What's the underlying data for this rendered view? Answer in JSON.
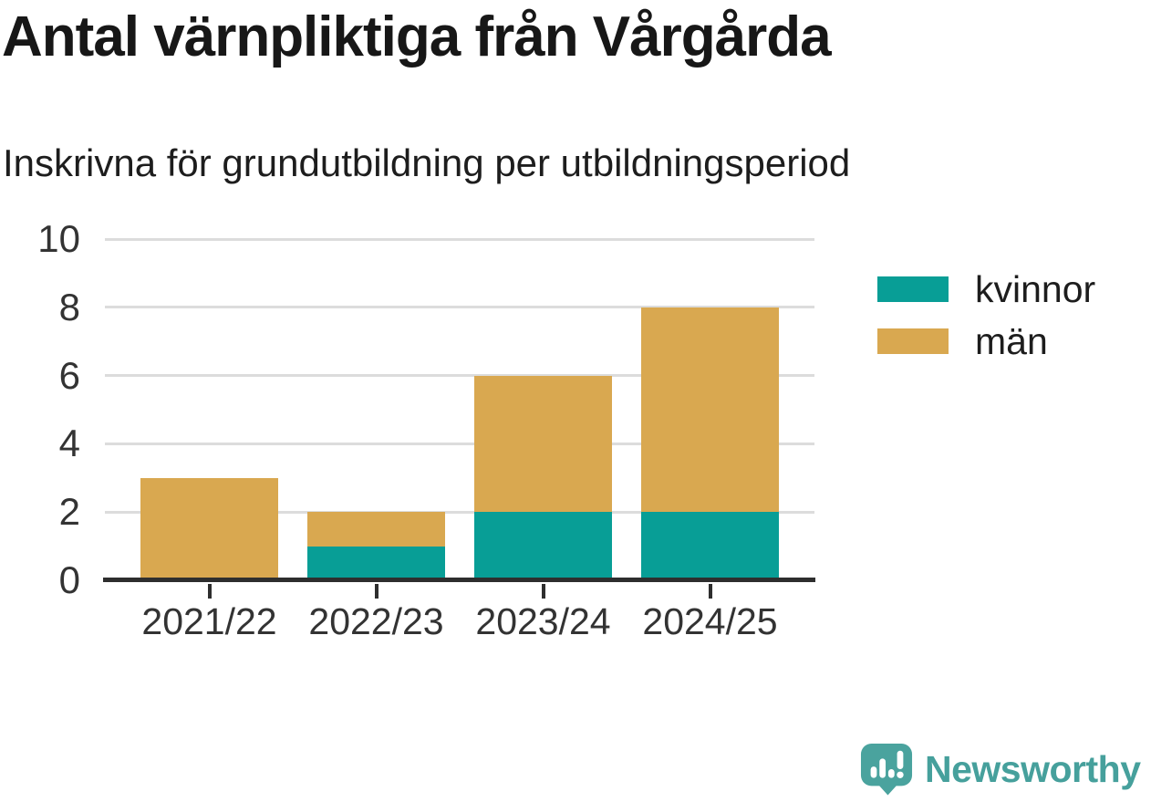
{
  "header": {
    "title": "Antal värnpliktiga från Vårgårda",
    "subtitle": "Inskrivna för grundutbildning per utbildningsperiod"
  },
  "chart_data": {
    "type": "bar",
    "stacked": true,
    "title": "Antal värnpliktiga från Vårgårda",
    "subtitle": "Inskrivna för grundutbildning per utbildningsperiod",
    "xlabel": "",
    "ylabel": "",
    "categories": [
      "2021/22",
      "2022/23",
      "2023/24",
      "2024/25"
    ],
    "series": [
      {
        "name": "kvinnor",
        "color": "#089e96",
        "values": [
          0,
          1,
          2,
          2
        ]
      },
      {
        "name": "män",
        "color": "#d9a850",
        "values": [
          3,
          1,
          4,
          6
        ]
      }
    ],
    "stack_totals": [
      3,
      2,
      6,
      8
    ],
    "ylim": [
      0,
      10
    ],
    "yticks": [
      0,
      2,
      4,
      6,
      8,
      10
    ],
    "grid": "horizontal",
    "gridline_color": "#dcdcdc",
    "axis_color": "#2e2e2e",
    "legend_position": "right"
  },
  "footer": {
    "brand": "Newsworthy",
    "brand_color": "#46a09c"
  }
}
